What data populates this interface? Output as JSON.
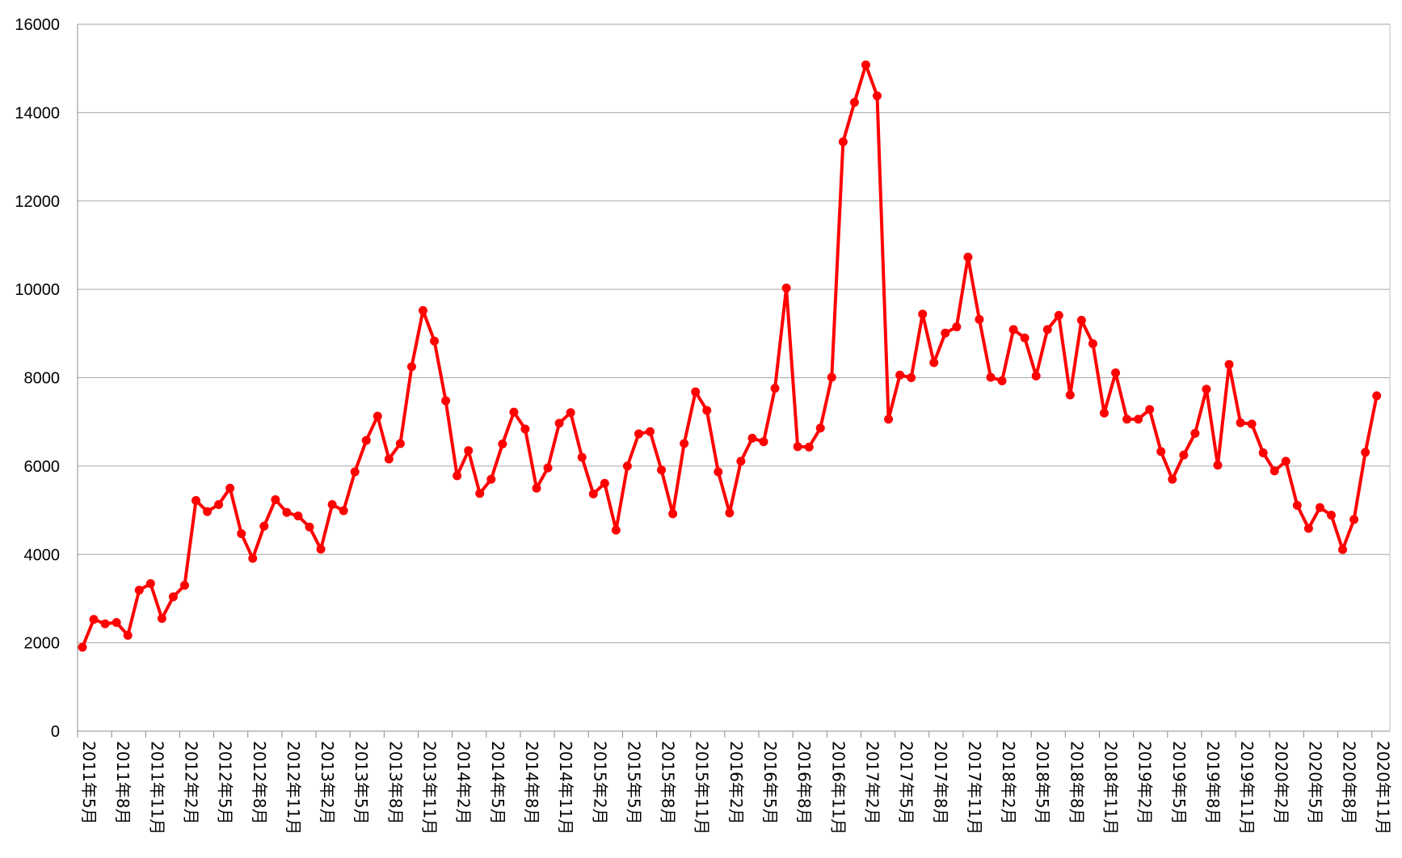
{
  "chart_data": {
    "type": "line",
    "title": "",
    "xlabel": "",
    "ylabel": "",
    "ylim": [
      0,
      16000
    ],
    "yticks": [
      0,
      2000,
      4000,
      6000,
      8000,
      10000,
      12000,
      14000,
      16000
    ],
    "grid": "horizontal",
    "legend": "none",
    "x_labels_shown": [
      "2011年5月",
      "2011年8月",
      "2011年11月",
      "2012年2月",
      "2012年5月",
      "2012年8月",
      "2012年11月",
      "2013年2月",
      "2013年5月",
      "2013年8月",
      "2013年11月",
      "2014年2月",
      "2014年5月",
      "2014年8月",
      "2014年11月",
      "2015年2月",
      "2015年5月",
      "2015年8月",
      "2015年11月",
      "2016年2月",
      "2016年5月",
      "2016年8月",
      "2016年11月",
      "2017年2月",
      "2017年5月",
      "2017年8月",
      "2017年11月",
      "2018年2月",
      "2018年5月",
      "2018年8月",
      "2018年11月",
      "2019年2月",
      "2019年5月",
      "2019年8月",
      "2019年11月",
      "2020年2月",
      "2020年5月",
      "2020年8月",
      "2020年11月"
    ],
    "series": [
      {
        "color": "#ff0000",
        "values": [
          1900,
          2530,
          2430,
          2460,
          2170,
          3190,
          3340,
          2550,
          3040,
          3300,
          5220,
          4970,
          5130,
          5500,
          4470,
          3910,
          4640,
          5240,
          4950,
          4870,
          4620,
          4120,
          5130,
          4990,
          5870,
          6580,
          7130,
          6160,
          6510,
          8250,
          9520,
          8830,
          7480,
          5780,
          6350,
          5380,
          5700,
          6500,
          7220,
          6840,
          5500,
          5960,
          6970,
          7210,
          6200,
          5370,
          5610,
          4550,
          6000,
          6730,
          6780,
          5910,
          4920,
          6510,
          7680,
          7260,
          5870,
          4940,
          6110,
          6630,
          6550,
          7760,
          10030,
          6440,
          6430,
          6860,
          8010,
          13340,
          14230,
          15080,
          14380,
          7060,
          8060,
          8000,
          9440,
          8340,
          9010,
          9150,
          10730,
          9320,
          8010,
          7930,
          9090,
          8900,
          8040,
          9090,
          9410,
          7610,
          9300,
          8770,
          7200,
          8110,
          7060,
          7060,
          7280,
          6330,
          5700,
          6250,
          6740,
          7740,
          6020,
          8300,
          6980,
          6950,
          6300,
          5890,
          6110,
          5110,
          4590,
          5060,
          4890,
          4110,
          4790,
          6310,
          7590
        ]
      }
    ]
  }
}
